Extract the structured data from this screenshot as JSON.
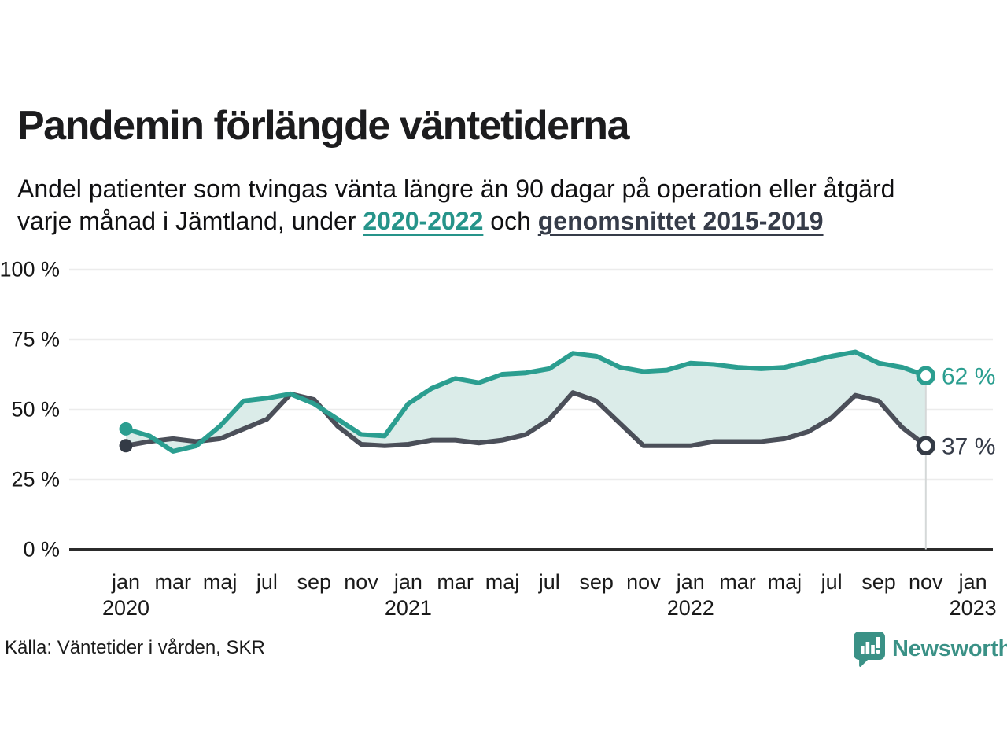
{
  "header": {
    "title": "Pandemin förlängde väntetiderna",
    "subtitle_line1": "Andel patienter som tvingas vänta längre än 90 dagar på operation eller åtgärd",
    "subtitle_prefix": "varje månad i Jämtland, under ",
    "subtitle_key1": "2020-2022",
    "subtitle_conj": " och ",
    "subtitle_key2": "genomsnittet 2015-2019"
  },
  "chart_data": {
    "type": "line",
    "title": "Pandemin förlängde väntetiderna",
    "ylabel": "",
    "xlabel": "",
    "ylim": [
      0,
      100
    ],
    "grid": "horizontal",
    "fill_between_series": true,
    "fill_color": "#dbece9",
    "yticks": [
      {
        "value": 0,
        "label": "0 %"
      },
      {
        "value": 25,
        "label": "25 %"
      },
      {
        "value": 50,
        "label": "50 %"
      },
      {
        "value": 75,
        "label": "75 %"
      },
      {
        "value": 100,
        "label": "100 %"
      }
    ],
    "xticks": [
      {
        "i": 0,
        "month": "jan",
        "year": "2020"
      },
      {
        "i": 2,
        "month": "mar"
      },
      {
        "i": 4,
        "month": "maj"
      },
      {
        "i": 6,
        "month": "jul"
      },
      {
        "i": 8,
        "month": "sep"
      },
      {
        "i": 10,
        "month": "nov"
      },
      {
        "i": 12,
        "month": "jan",
        "year": "2021"
      },
      {
        "i": 14,
        "month": "mar"
      },
      {
        "i": 16,
        "month": "maj"
      },
      {
        "i": 18,
        "month": "jul"
      },
      {
        "i": 20,
        "month": "sep"
      },
      {
        "i": 22,
        "month": "nov"
      },
      {
        "i": 24,
        "month": "jan",
        "year": "2022"
      },
      {
        "i": 26,
        "month": "mar"
      },
      {
        "i": 28,
        "month": "maj"
      },
      {
        "i": 30,
        "month": "jul"
      },
      {
        "i": 32,
        "month": "sep"
      },
      {
        "i": 34,
        "month": "nov"
      },
      {
        "i": 36,
        "month": "jan",
        "year": "2023"
      }
    ],
    "x_months": [
      "jan 2020",
      "feb 2020",
      "mar 2020",
      "apr 2020",
      "maj 2020",
      "jun 2020",
      "jul 2020",
      "aug 2020",
      "sep 2020",
      "okt 2020",
      "nov 2020",
      "dec 2020",
      "jan 2021",
      "feb 2021",
      "mar 2021",
      "apr 2021",
      "maj 2021",
      "jun 2021",
      "jul 2021",
      "aug 2021",
      "sep 2021",
      "okt 2021",
      "nov 2021",
      "dec 2021",
      "jan 2022",
      "feb 2022",
      "mar 2022",
      "apr 2022",
      "maj 2022",
      "jun 2022",
      "jul 2022",
      "aug 2022",
      "sep 2022",
      "okt 2022",
      "nov 2022"
    ],
    "series": [
      {
        "name": "2020-2022",
        "color": "#2b9e90",
        "marker_color": "#2b9e90",
        "end_label": "62 %",
        "values": [
          43,
          40.5,
          35,
          37,
          44,
          53,
          54,
          55.5,
          52,
          46.5,
          41,
          40.5,
          52,
          57.5,
          61,
          59.5,
          62.5,
          63,
          64.5,
          70,
          69,
          65,
          63.5,
          64,
          66.5,
          66,
          65,
          64.5,
          65,
          67,
          69,
          70.5,
          66.5,
          65,
          62
        ]
      },
      {
        "name": "genomsnittet 2015-2019",
        "color": "#4b4f59",
        "marker_color": "#343b46",
        "end_label": "37 %",
        "values": [
          37,
          38.5,
          39.5,
          38.5,
          39.5,
          43,
          46.5,
          55.5,
          53.5,
          44,
          37.5,
          37,
          37.5,
          39,
          39,
          38,
          39,
          41,
          46.5,
          56,
          53,
          45,
          37,
          37,
          37,
          38.5,
          38.5,
          38.5,
          39.5,
          42,
          47,
          55,
          53,
          43.5,
          37
        ]
      }
    ]
  },
  "footer": {
    "source": "Källa: Väntetider i vården, SKR",
    "brand": "Newsworthy",
    "brand_color": "#3a9186"
  }
}
